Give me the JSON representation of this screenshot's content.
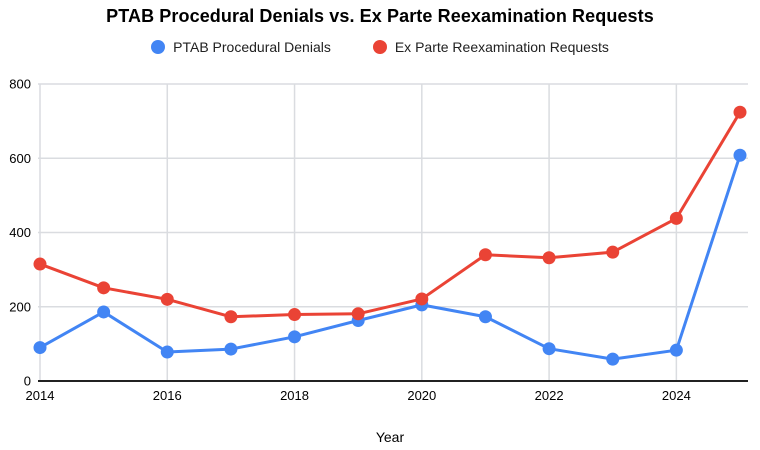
{
  "chart_data": {
    "type": "line",
    "title": "PTAB Procedural Denials vs. Ex Parte Reexamination Requests",
    "xlabel": "Year",
    "ylabel": "",
    "x": [
      2014,
      2015,
      2016,
      2017,
      2018,
      2019,
      2020,
      2021,
      2022,
      2023,
      2024,
      2025
    ],
    "series": [
      {
        "name": "PTAB Procedural Denials",
        "color": "#4285F4",
        "values": [
          90,
          186,
          78,
          86,
          119,
          163,
          205,
          173,
          87,
          59,
          83,
          608
        ]
      },
      {
        "name": "Ex Parte Reexamination Requests",
        "color": "#EA4335",
        "values": [
          315,
          251,
          220,
          173,
          179,
          181,
          221,
          340,
          332,
          347,
          438,
          724
        ]
      }
    ],
    "ylim": [
      0,
      800
    ],
    "y_ticks": [
      0,
      200,
      400,
      600,
      800
    ],
    "x_ticks": [
      2014,
      2016,
      2018,
      2020,
      2022,
      2024
    ],
    "grid": true,
    "legend_position": "top"
  },
  "colors": {
    "grid": "#dadce0",
    "axis_line": "#212121",
    "tick_text": "#000000",
    "legend_text": "#212121",
    "background": "#ffffff"
  }
}
